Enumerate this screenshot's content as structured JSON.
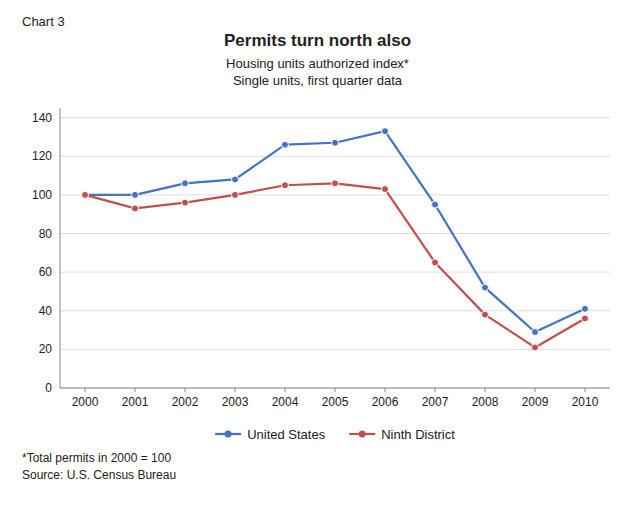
{
  "chart_data": {
    "type": "line",
    "title": "Permits turn north also",
    "subtitle": [
      "Housing units authorized index*",
      "Single units, first quarter data"
    ],
    "annotations": [
      "Chart 3",
      "*Total permits in 2000 = 100",
      "Source: U.S. Census Bureau"
    ],
    "x": [
      2000,
      2001,
      2002,
      2003,
      2004,
      2005,
      2006,
      2007,
      2008,
      2009,
      2010
    ],
    "series": [
      {
        "name": "United States",
        "color": "#4472C4",
        "marker": "circle",
        "values": [
          100,
          100,
          106,
          108,
          126,
          127,
          133,
          95,
          52,
          29,
          41
        ]
      },
      {
        "name": "Ninth District",
        "color": "#C0504D",
        "marker": "circle",
        "values": [
          100,
          93,
          96,
          100,
          105,
          106,
          103,
          65,
          38,
          21,
          36
        ]
      }
    ],
    "xlim": [
      1999.5,
      2010.5
    ],
    "xticks": [
      2000,
      2001,
      2002,
      2003,
      2004,
      2005,
      2006,
      2007,
      2008,
      2009,
      2010
    ],
    "ylim": [
      0,
      145
    ],
    "yticks": [
      0,
      20,
      40,
      60,
      80,
      100,
      120,
      140
    ],
    "grid": "y",
    "legend": "bottom"
  }
}
